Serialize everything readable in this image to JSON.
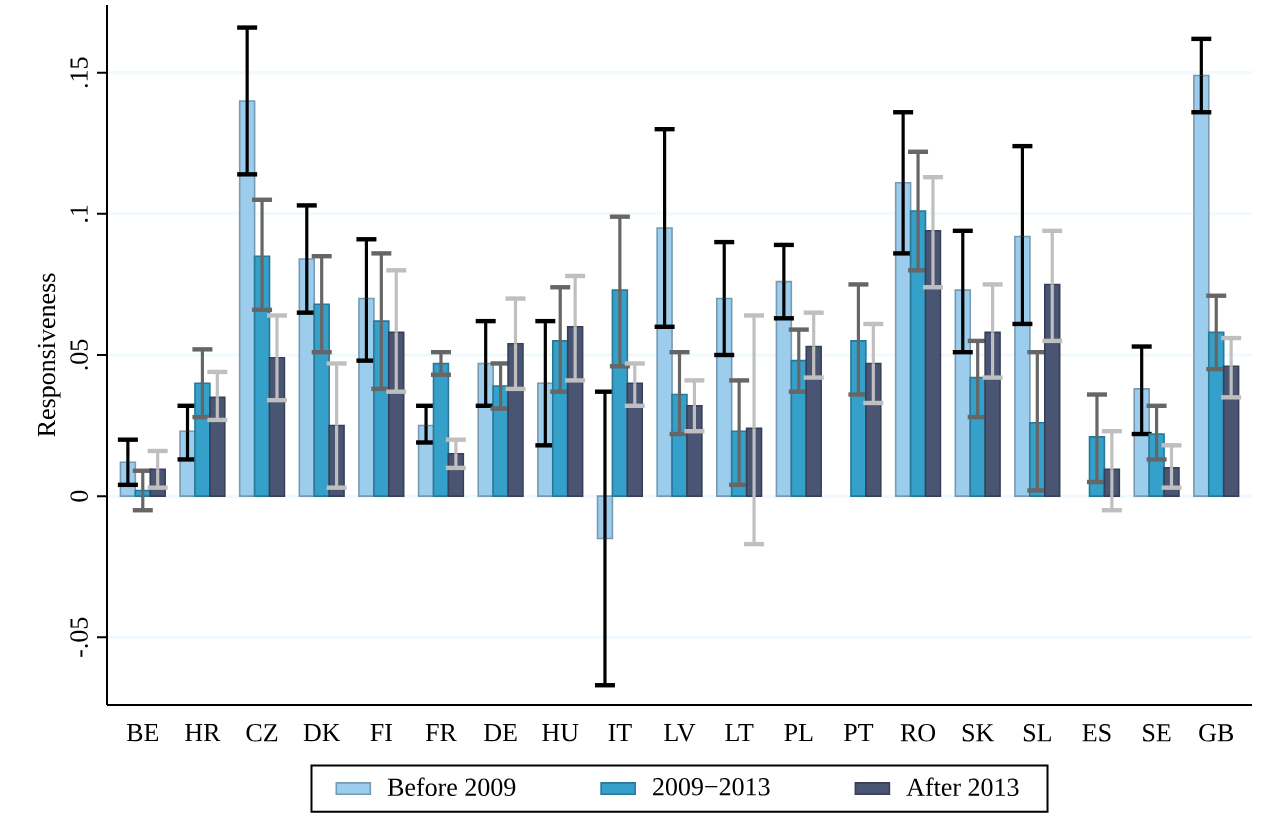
{
  "chart_data": {
    "type": "bar",
    "ylabel": "Responsiveness",
    "categories": [
      "BE",
      "HR",
      "CZ",
      "DK",
      "FI",
      "FR",
      "DE",
      "HU",
      "IT",
      "LV",
      "LT",
      "PL",
      "PT",
      "RO",
      "SK",
      "SL",
      "ES",
      "SE",
      "GB"
    ],
    "series": [
      {
        "name": "Before 2009",
        "color": "#9ccdec",
        "values": [
          0.012,
          0.023,
          0.14,
          0.084,
          0.07,
          0.025,
          0.047,
          0.04,
          -0.015,
          0.095,
          0.07,
          0.076,
          null,
          0.111,
          0.073,
          0.092,
          null,
          0.038,
          0.149
        ],
        "errors": [
          [
            0.004,
            0.02
          ],
          [
            0.013,
            0.032
          ],
          [
            0.114,
            0.166
          ],
          [
            0.065,
            0.103
          ],
          [
            0.048,
            0.091
          ],
          [
            0.019,
            0.032
          ],
          [
            0.032,
            0.062
          ],
          [
            0.018,
            0.062
          ],
          [
            -0.067,
            0.037
          ],
          [
            0.06,
            0.13
          ],
          [
            0.05,
            0.09
          ],
          [
            0.063,
            0.089
          ],
          null,
          [
            0.086,
            0.136
          ],
          [
            0.051,
            0.094
          ],
          [
            0.061,
            0.124
          ],
          null,
          [
            0.022,
            0.053
          ],
          [
            0.136,
            0.162
          ]
        ]
      },
      {
        "name": "2009−2013",
        "color": "#35a0c9",
        "values": [
          0.002,
          0.04,
          0.085,
          0.068,
          0.062,
          0.047,
          0.039,
          0.055,
          0.073,
          0.036,
          0.023,
          0.048,
          0.055,
          0.101,
          0.042,
          0.026,
          0.021,
          0.022,
          0.058
        ],
        "errors": [
          [
            -0.005,
            0.009
          ],
          [
            0.028,
            0.052
          ],
          [
            0.066,
            0.105
          ],
          [
            0.051,
            0.085
          ],
          [
            0.038,
            0.086
          ],
          [
            0.043,
            0.051
          ],
          [
            0.031,
            0.047
          ],
          [
            0.037,
            0.074
          ],
          [
            0.046,
            0.099
          ],
          [
            0.022,
            0.051
          ],
          [
            0.004,
            0.041
          ],
          [
            0.037,
            0.059
          ],
          [
            0.036,
            0.075
          ],
          [
            0.08,
            0.122
          ],
          [
            0.028,
            0.055
          ],
          [
            0.002,
            0.051
          ],
          [
            0.005,
            0.036
          ],
          [
            0.013,
            0.032
          ],
          [
            0.045,
            0.071
          ]
        ]
      },
      {
        "name": "After 2013",
        "color": "#4a5574",
        "values": [
          0.0095,
          0.035,
          0.049,
          0.025,
          0.058,
          0.015,
          0.054,
          0.06,
          0.04,
          0.032,
          0.024,
          0.053,
          0.047,
          0.094,
          0.058,
          0.075,
          0.0095,
          0.01,
          0.046
        ],
        "errors": [
          [
            0.003,
            0.016
          ],
          [
            0.027,
            0.044
          ],
          [
            0.034,
            0.064
          ],
          [
            0.003,
            0.047
          ],
          [
            0.037,
            0.08
          ],
          [
            0.01,
            0.02
          ],
          [
            0.038,
            0.07
          ],
          [
            0.041,
            0.078
          ],
          [
            0.032,
            0.047
          ],
          [
            0.023,
            0.041
          ],
          [
            -0.017,
            0.064
          ],
          [
            0.042,
            0.065
          ],
          [
            0.033,
            0.061
          ],
          [
            0.074,
            0.113
          ],
          [
            0.042,
            0.075
          ],
          [
            0.055,
            0.094
          ],
          [
            -0.005,
            0.023
          ],
          [
            0.003,
            0.018
          ],
          [
            0.035,
            0.056
          ]
        ]
      }
    ],
    "ylim": [
      -0.074,
      0.174
    ],
    "yticks": [
      {
        "value": -0.05,
        "label": "-.05"
      },
      0,
      {
        "value": 0.05,
        "label": ".05"
      },
      {
        "value": 0.1,
        "label": ".1"
      },
      {
        "value": 0.15,
        "label": ".15"
      }
    ],
    "grid": "y",
    "legend": "bottom"
  }
}
